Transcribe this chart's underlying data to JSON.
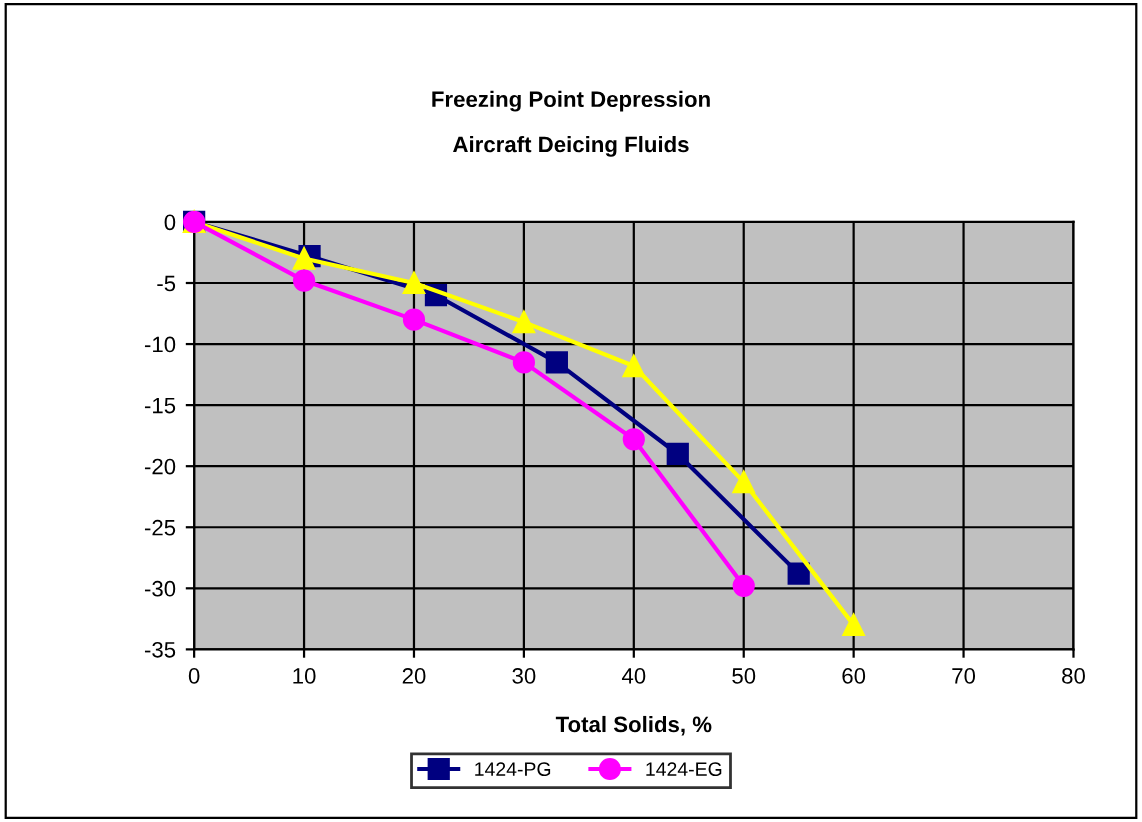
{
  "chart_data": {
    "type": "line",
    "title": "Freezing Point Depression",
    "subtitle": "Aircraft Deicing Fluids",
    "xlabel": "Total Solids, %",
    "xlim": [
      0,
      80
    ],
    "xticks": [
      0,
      10,
      20,
      30,
      40,
      50,
      60,
      70,
      80
    ],
    "ylim": [
      -35,
      0
    ],
    "yticks": [
      -35,
      -30,
      -25,
      -20,
      -15,
      -10,
      -5,
      0
    ],
    "grid": true,
    "legend": "bottom",
    "series": [
      {
        "name": "1424-PG",
        "color": "#000080",
        "marker": "square",
        "x": [
          0,
          10.5,
          22,
          33,
          44,
          55
        ],
        "values": [
          0,
          -2.8,
          -6,
          -11.5,
          -19,
          -28.8
        ]
      },
      {
        "color": "#ffff00",
        "marker": "triangle",
        "x": [
          0,
          10,
          20,
          30,
          40,
          50,
          60
        ],
        "values": [
          0,
          -3,
          -5,
          -8.2,
          -11.8,
          -21.3,
          -33
        ]
      },
      {
        "name": "1424-EG",
        "color": "#ff00ff",
        "marker": "circle",
        "x": [
          0,
          10,
          20,
          30,
          40,
          50
        ],
        "values": [
          0,
          -4.8,
          -8,
          -11.5,
          -17.8,
          -29.8
        ]
      }
    ]
  }
}
